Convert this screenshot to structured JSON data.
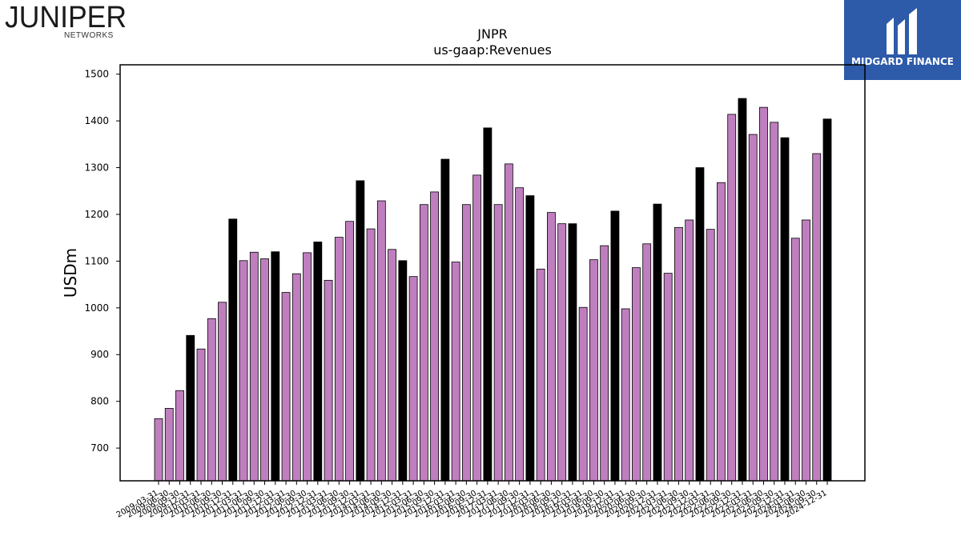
{
  "brand": {
    "left_logo_text": "JUNIPER",
    "left_logo_subtext": "NETWORKS",
    "right_logo_text": "MIDGARD FINANCE",
    "right_logo_bg": "#2d5aa9"
  },
  "chart_data": {
    "type": "bar",
    "title": "JNPR",
    "subtitle": "us-gaap:Revenues",
    "ylabel": "USDm",
    "xlabel": "",
    "ylim": [
      630,
      1520
    ],
    "yticks": [
      700,
      800,
      900,
      1000,
      1100,
      1200,
      1300,
      1400,
      1500
    ],
    "grid": false,
    "colors": {
      "quarter": "#bf7fbf",
      "annual": "#000000"
    },
    "categories": [
      "2009-03-31",
      "2009-06-30",
      "2009-09-30",
      "2009-12-31",
      "2010-03-31",
      "2010-06-30",
      "2010-09-30",
      "2010-12-31",
      "2011-03-31",
      "2011-06-30",
      "2011-09-30",
      "2011-12-31",
      "2012-03-31",
      "2012-06-30",
      "2012-09-30",
      "2012-12-31",
      "2013-03-31",
      "2013-06-30",
      "2013-09-30",
      "2013-12-31",
      "2014-03-31",
      "2014-06-30",
      "2014-09-30",
      "2014-12-31",
      "2015-03-31",
      "2015-06-30",
      "2015-09-30",
      "2015-12-31",
      "2016-03-31",
      "2016-06-30",
      "2016-09-30",
      "2016-12-31",
      "2017-03-31",
      "2017-06-30",
      "2017-09-30",
      "2017-12-31",
      "2018-03-31",
      "2018-06-30",
      "2018-09-30",
      "2018-12-31",
      "2019-03-31",
      "2019-06-30",
      "2019-09-30",
      "2019-12-31",
      "2020-03-31",
      "2020-06-30",
      "2020-09-30",
      "2020-12-31",
      "2021-03-31",
      "2021-06-30",
      "2021-09-30",
      "2021-12-31",
      "2022-03-31",
      "2022-06-30",
      "2022-09-30",
      "2022-12-31",
      "2023-03-31",
      "2023-06-30",
      "2023-09-30",
      "2023-12-31",
      "2024-03-31",
      "2024-06-30",
      "2024-09-30",
      "2024-12-31"
    ],
    "values": [
      763,
      785,
      823,
      941,
      912,
      977,
      1012,
      1190,
      1101,
      1119,
      1105,
      1120,
      1033,
      1073,
      1118,
      1141,
      1059,
      1151,
      1185,
      1272,
      1169,
      1229,
      1125,
      1101,
      1067,
      1221,
      1248,
      1318,
      1098,
      1221,
      1284,
      1385,
      1221,
      1308,
      1257,
      1240,
      1083,
      1204,
      1180,
      1180,
      1001,
      1103,
      1133,
      1207,
      998,
      1086,
      1137,
      1222,
      1074,
      1172,
      1188,
      1300,
      1168,
      1268,
      1414,
      1448,
      1371,
      1429,
      1397,
      1364,
      1149,
      1188,
      1330,
      1404
    ],
    "annual_flags": [
      false,
      false,
      false,
      true,
      false,
      false,
      false,
      true,
      false,
      false,
      false,
      true,
      false,
      false,
      false,
      true,
      false,
      false,
      false,
      true,
      false,
      false,
      false,
      true,
      false,
      false,
      false,
      true,
      false,
      false,
      false,
      true,
      false,
      false,
      false,
      true,
      false,
      false,
      false,
      true,
      false,
      false,
      false,
      true,
      false,
      false,
      false,
      true,
      false,
      false,
      false,
      true,
      false,
      false,
      false,
      true,
      false,
      false,
      false,
      true,
      false,
      false,
      false,
      true
    ]
  }
}
